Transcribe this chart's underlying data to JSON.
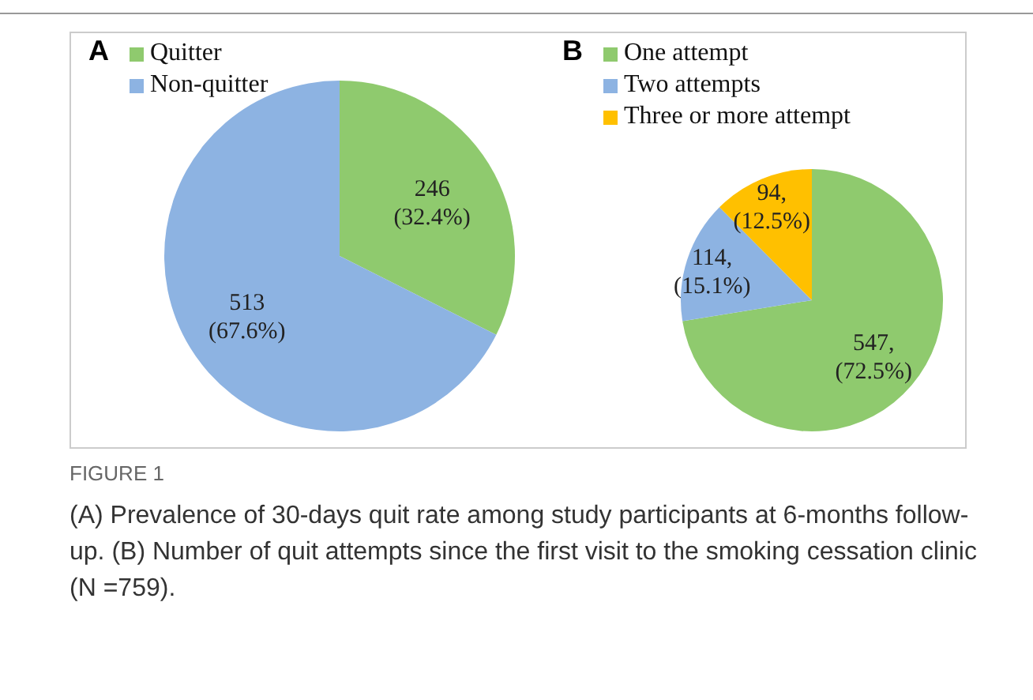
{
  "chart_data": [
    {
      "type": "pie",
      "title": "A",
      "categories": [
        "Quitter",
        "Non-quitter"
      ],
      "values": [
        246,
        513
      ],
      "colors": [
        "#8fca6e",
        "#8db3e2"
      ],
      "value_labels": [
        "246 (32.4%)",
        "513 (67.6%)"
      ],
      "legend": "top left",
      "annotations": [
        "FIGURE 1",
        "(A) Prevalence of 30-days quit rate among study participants at 6-months follow-up. (B) Number of quit attempts since the first visit to the smoking cessation clinic (N =759)."
      ]
    },
    {
      "type": "pie",
      "title": "B",
      "categories": [
        "One attempt",
        "Two attempts",
        "Three or more attempt"
      ],
      "values": [
        547,
        114,
        94
      ],
      "colors": [
        "#8fca6e",
        "#8db3e2",
        "#ffc000"
      ],
      "value_labels": [
        "547, (72.5%)",
        "114, (15.1%)",
        "94, (12.5%)"
      ],
      "legend": "top left"
    }
  ]
}
